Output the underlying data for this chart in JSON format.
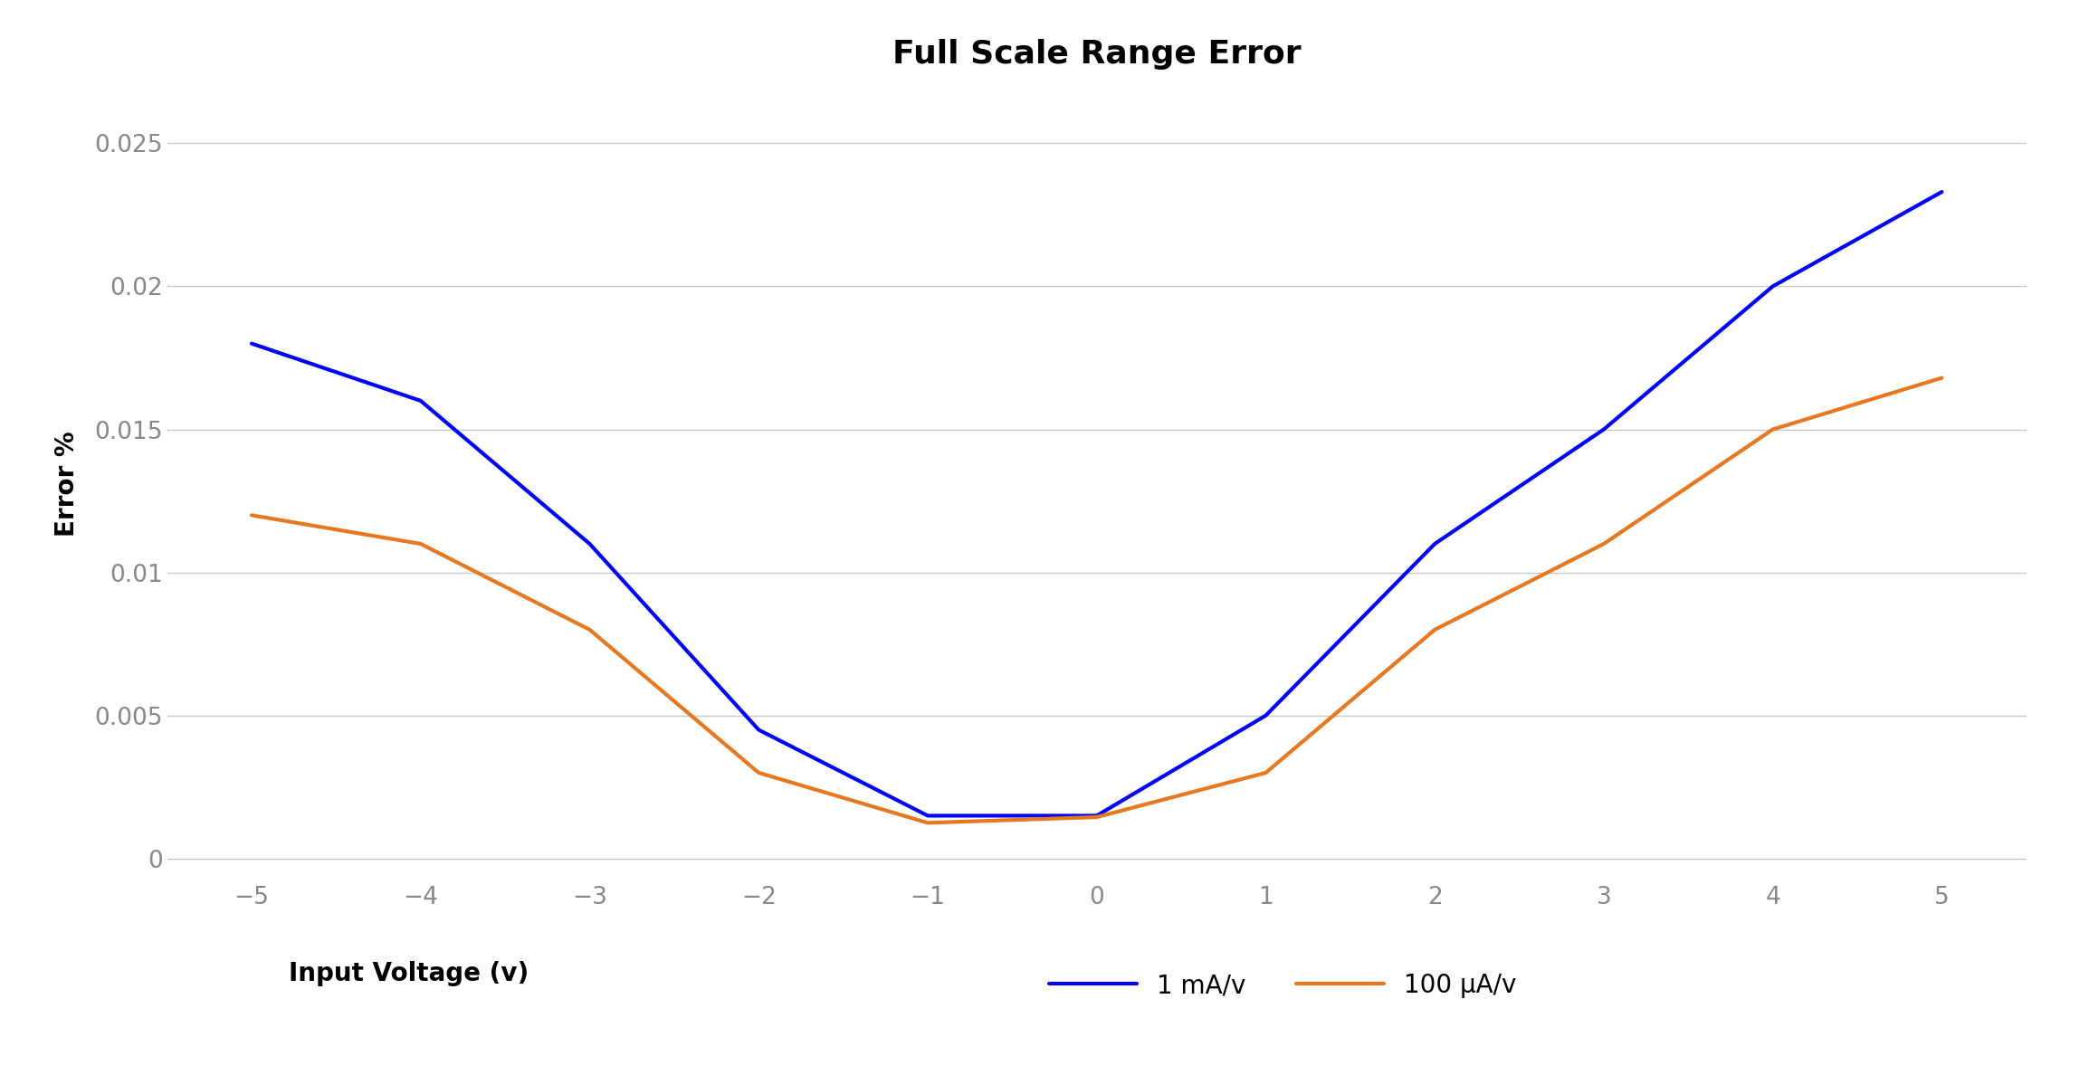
{
  "title": "Full Scale Range Error",
  "xlabel": "Input Voltage (v)",
  "ylabel": "Error %",
  "x": [
    -5,
    -4,
    -3,
    -2,
    -1,
    0,
    1,
    2,
    3,
    4,
    5
  ],
  "series_1mA": [
    0.018,
    0.016,
    0.011,
    0.0045,
    0.0015,
    0.0015,
    0.005,
    0.011,
    0.015,
    0.02,
    0.0233
  ],
  "series_100uA": [
    0.012,
    0.011,
    0.008,
    0.003,
    0.00125,
    0.00145,
    0.003,
    0.008,
    0.011,
    0.015,
    0.0168
  ],
  "color_1mA": "#0000FF",
  "color_100uA": "#E87820",
  "legend_1mA": "1 mA/v",
  "legend_100uA": "100 μA/v",
  "ylim": [
    -0.0008,
    0.027
  ],
  "yticks": [
    0,
    0.005,
    0.01,
    0.015,
    0.02,
    0.025
  ],
  "xlim": [
    -5.5,
    5.5
  ],
  "xticks": [
    -5,
    -4,
    -3,
    -2,
    -1,
    0,
    1,
    2,
    3,
    4,
    5
  ],
  "background_color": "#ffffff",
  "grid_color": "#c8c8c8",
  "title_fontsize": 26,
  "label_fontsize": 20,
  "tick_fontsize": 19,
  "legend_fontsize": 20,
  "line_width": 3.0
}
